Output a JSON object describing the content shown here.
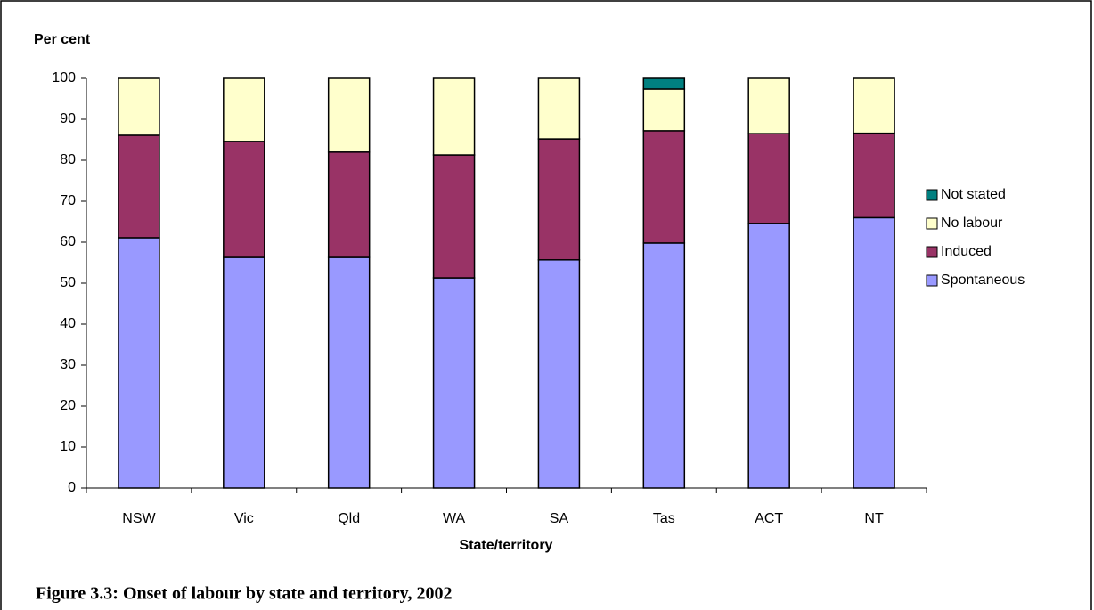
{
  "chart_data": {
    "type": "stacked_bar",
    "y_label": "Per cent",
    "x_label": "State/territory",
    "caption": "Figure 3.3: Onset of labour by state and territory, 2002",
    "categories": [
      "NSW",
      "Vic",
      "Qld",
      "WA",
      "SA",
      "Tas",
      "ACT",
      "NT"
    ],
    "series": [
      {
        "name": "Spontaneous",
        "color": "#9999ff",
        "values": [
          61.1,
          56.3,
          56.3,
          51.3,
          55.7,
          59.8,
          64.6,
          66.0
        ]
      },
      {
        "name": "Induced",
        "color": "#993366",
        "values": [
          25.0,
          28.3,
          25.7,
          30.0,
          29.5,
          27.4,
          21.9,
          20.6
        ]
      },
      {
        "name": "No labour",
        "color": "#ffffcc",
        "values": [
          13.9,
          15.4,
          18.0,
          18.7,
          14.8,
          10.2,
          13.5,
          13.4
        ]
      },
      {
        "name": "Not stated",
        "color": "#008080",
        "values": [
          0,
          0,
          0,
          0,
          0,
          2.6,
          0,
          0
        ]
      }
    ],
    "ylim": [
      0,
      100
    ],
    "yticks": [
      0,
      10,
      20,
      30,
      40,
      50,
      60,
      70,
      80,
      90,
      100
    ],
    "legend": "right"
  }
}
